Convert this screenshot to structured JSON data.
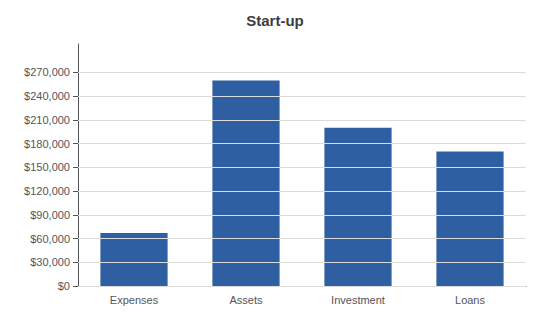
{
  "chart_data": {
    "type": "bar",
    "title": "Start-up",
    "categories": [
      "Expenses",
      "Assets",
      "Investment",
      "Loans"
    ],
    "values": [
      67000,
      260000,
      200000,
      170000
    ],
    "color": "#2E5FA3",
    "ylim": [
      0,
      306000
    ],
    "yticks": [
      {
        "value": 0,
        "label": "$0"
      },
      {
        "value": 30000,
        "label": "$30,000"
      },
      {
        "value": 60000,
        "label": "$60,000"
      },
      {
        "value": 90000,
        "label": "$90,000"
      },
      {
        "value": 120000,
        "label": "$120,000"
      },
      {
        "value": 150000,
        "label": "$150,000"
      },
      {
        "value": 180000,
        "label": "$180,000"
      },
      {
        "value": 210000,
        "label": "$210,000"
      },
      {
        "value": 240000,
        "label": "$240,000"
      },
      {
        "value": 270000,
        "label": "$270,000"
      }
    ],
    "grid": true
  }
}
